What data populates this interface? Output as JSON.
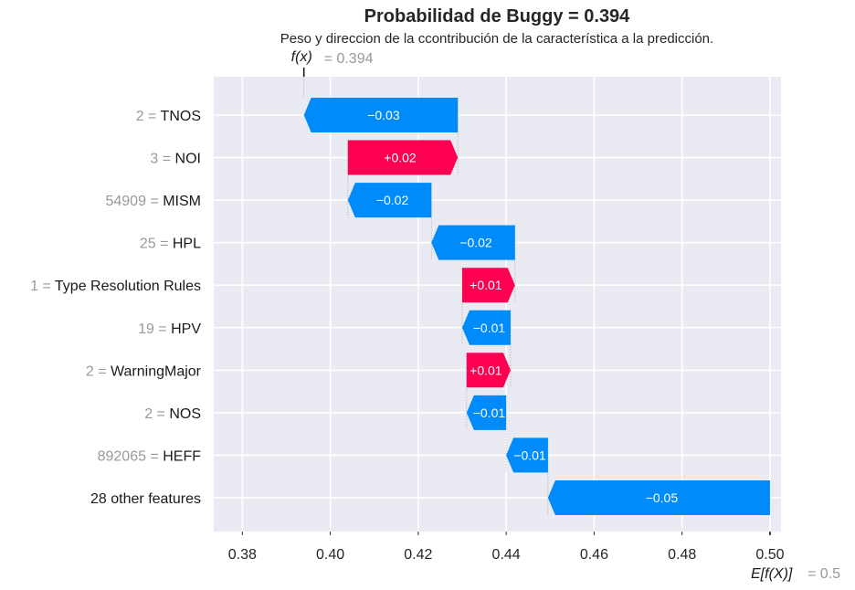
{
  "chart_data": {
    "type": "waterfall",
    "title": "Probabilidad de Buggy = 0.394",
    "subtitle": "Peso y direccion de la ccontribución de la característica a la predicción.",
    "fx": {
      "label": "f(x)",
      "value_text": "= 0.394",
      "value": 0.394
    },
    "base": {
      "label": "E[f(X)]",
      "value_text": "= 0.5",
      "value": 0.5
    },
    "xlim": [
      0.3735,
      0.5025
    ],
    "xticks": [
      0.38,
      0.4,
      0.42,
      0.44,
      0.46,
      0.48,
      0.5
    ],
    "xtick_labels": [
      "0.38",
      "0.40",
      "0.42",
      "0.44",
      "0.46",
      "0.48",
      "0.50"
    ],
    "grid": true,
    "colors": {
      "positive": "#ff0051",
      "negative": "#008bfb",
      "background": "#eaeaf2",
      "grid": "#ffffff"
    },
    "features": [
      {
        "value": "2",
        "name": "TNOS",
        "start": 0.429,
        "end": 0.394,
        "label": "−0.03"
      },
      {
        "value": "3",
        "name": "NOI",
        "start": 0.404,
        "end": 0.429,
        "label": "+0.02"
      },
      {
        "value": "54909",
        "name": "MISM",
        "start": 0.423,
        "end": 0.404,
        "label": "−0.02"
      },
      {
        "value": "25",
        "name": "HPL",
        "start": 0.442,
        "end": 0.423,
        "label": "−0.02"
      },
      {
        "value": "1",
        "name": "Type Resolution Rules",
        "start": 0.43,
        "end": 0.442,
        "label": "+0.01"
      },
      {
        "value": "19",
        "name": "HPV",
        "start": 0.441,
        "end": 0.43,
        "label": "−0.01"
      },
      {
        "value": "2",
        "name": "WarningMajor",
        "start": 0.431,
        "end": 0.441,
        "label": "+0.01"
      },
      {
        "value": "2",
        "name": "NOS",
        "start": 0.44,
        "end": 0.431,
        "label": "−0.01"
      },
      {
        "value": "892065",
        "name": "HEFF",
        "start": 0.4495,
        "end": 0.44,
        "label": "−0.01"
      },
      {
        "value": "",
        "name": "28 other features",
        "start": 0.5,
        "end": 0.4495,
        "label": "−0.05"
      }
    ]
  }
}
